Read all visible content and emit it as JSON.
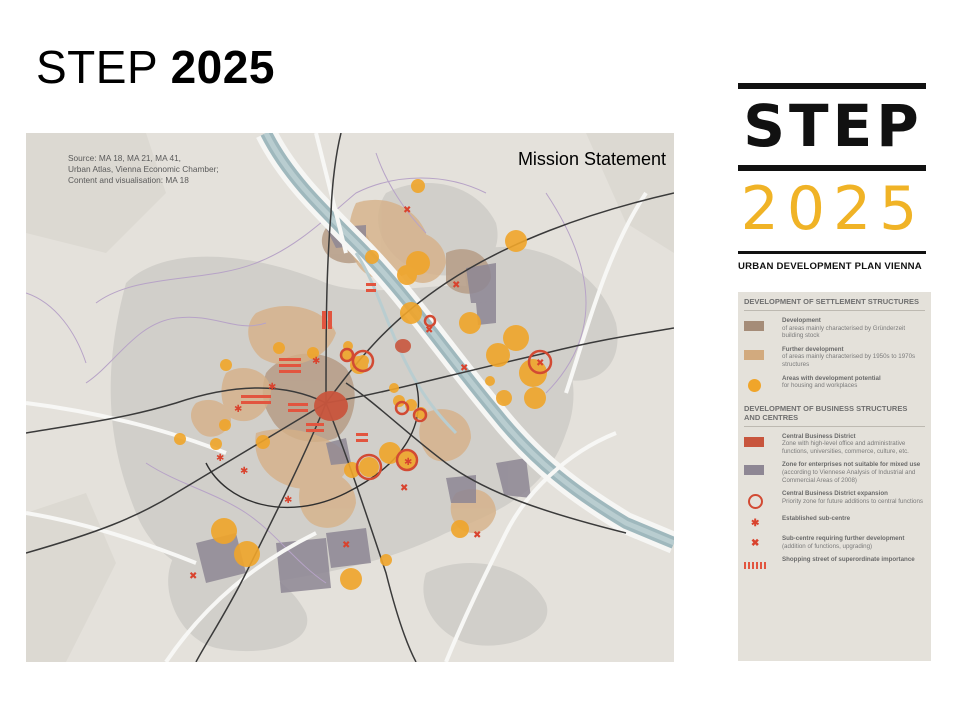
{
  "slide": {
    "title_prefix": "STEP",
    "title_year": "2025"
  },
  "map": {
    "source_note": "Source: MA 18, MA 21, MA 41,\nUrban Atlas, Vienna Economic Chamber;\nContent and visualisation: MA 18",
    "mission_label": "Mission Statement"
  },
  "logo": {
    "word_step": "STEP",
    "word_year": "2025",
    "subtitle": "URBAN DEVELOPMENT PLAN VIENNA",
    "year_color": "#f0b326"
  },
  "legend": {
    "section_1": "DEVELOPMENT OF SETTLEMENT STRUCTURES",
    "section_2": "DEVELOPMENT OF BUSINESS STRUCTURES AND CENTRES",
    "items_1": [
      {
        "title": "Development",
        "desc": "of areas mainly characterised by Gründerzeit building stock",
        "color": "#a58c78"
      },
      {
        "title": "Further development",
        "desc": "of areas mainly characterised by 1950s to 1970s structures",
        "color": "#d2aa7e"
      },
      {
        "title": "Areas with development potential",
        "desc": "for housing and workplaces",
        "color": "#f0a52a"
      }
    ],
    "items_2": [
      {
        "title": "Central Business District",
        "desc": "Zone with high-level office and administrative functions, universities, commerce, culture, etc.",
        "color": "#c8553d"
      },
      {
        "title": "Zone for enterprises not suitable for mixed use",
        "desc": "(according to Viennese Analysis of Industrial and Commercial Areas of 2008)",
        "color": "#8e8794"
      },
      {
        "title": "Central Business District expansion",
        "desc": "Priority zone for future additions to central functions",
        "color": "#d24a33"
      },
      {
        "title": "Established sub-centre",
        "desc": "",
        "color": "#d9432e"
      },
      {
        "title": "Sub-centre requiring further development",
        "desc": "(addition of functions, upgrading)",
        "color": "#d9432e"
      },
      {
        "title": "Shopping street of superordinate importance",
        "desc": "",
        "color": "#e2553f"
      }
    ]
  }
}
